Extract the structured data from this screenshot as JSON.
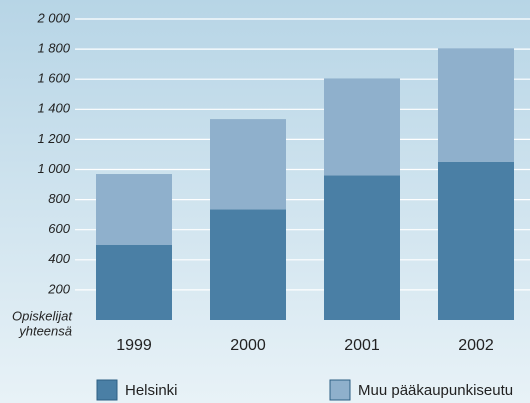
{
  "chart_data": {
    "type": "stacked_bar",
    "categories": [
      "1999",
      "2000",
      "2001",
      "2002"
    ],
    "series": [
      {
        "name": "Helsinki",
        "color": "#4a7fa5",
        "values": [
          500,
          735,
          960,
          1050
        ]
      },
      {
        "name": "Muu pääkaupunkiseutu",
        "color": "#8fb0cc",
        "values": [
          470,
          600,
          645,
          755
        ]
      }
    ],
    "y_label": [
      "Opiskelijat",
      "yhteensä"
    ],
    "ylim": [
      0,
      2000
    ],
    "yticks": [
      200,
      400,
      600,
      800,
      {
        "value": 1000,
        "label": "1 000"
      },
      {
        "value": 1200,
        "label": "1 200"
      },
      {
        "value": 1400,
        "label": "1 400"
      },
      {
        "value": 1600,
        "label": "1 600"
      },
      {
        "value": 1800,
        "label": "1 800"
      },
      {
        "value": 2000,
        "label": "2 000"
      }
    ],
    "grid": true,
    "legend": "bottom"
  }
}
